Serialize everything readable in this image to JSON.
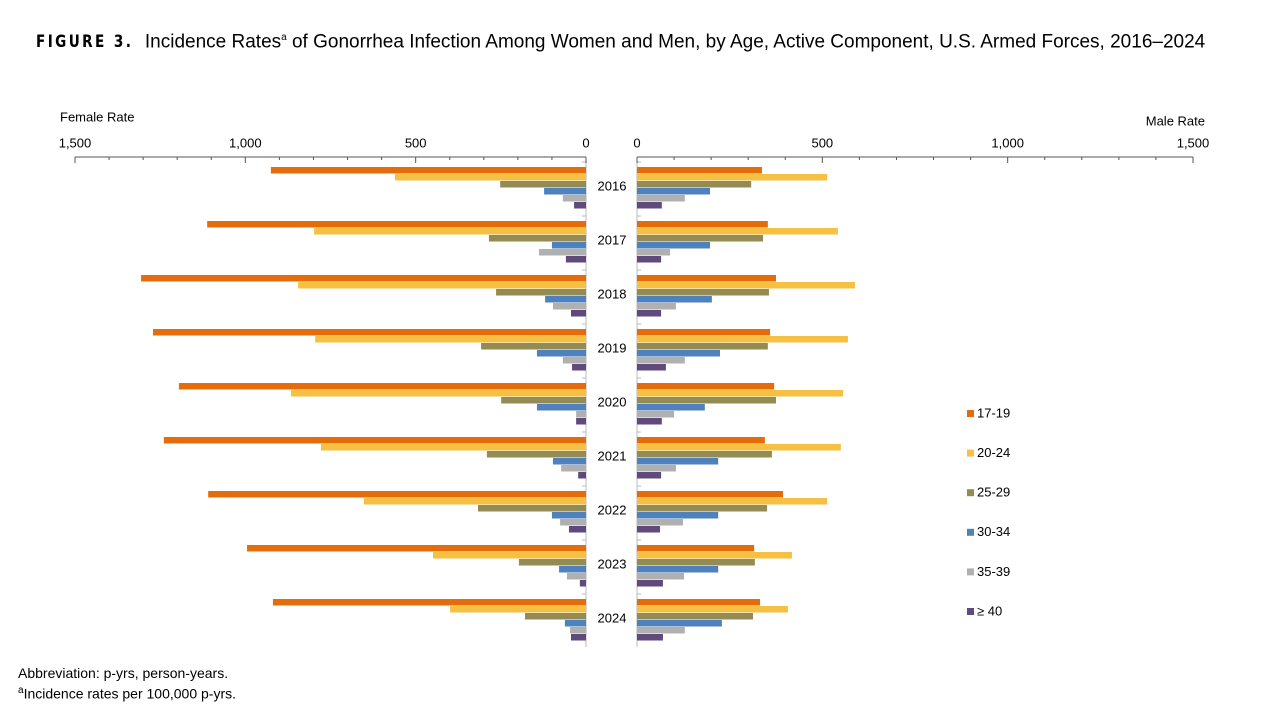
{
  "chart_data": [
    {
      "type": "hbar",
      "title": {
        "label": "FIGURE 3.",
        "text": "Incidence Rates",
        "marker": "a",
        "text_rest": "of Gonorrhea Infection Among Women and Men, by Age, Active Component, U.S. Armed Forces, 2016–2024"
      },
      "x_label": "Female Rate",
      "categories": [
        "2016",
        "2017",
        "2018",
        "2019",
        "2020",
        "2021",
        "2022",
        "2023",
        "2024"
      ],
      "xlim": [
        1500,
        0
      ],
      "xticks": [
        {
          "value": 1500,
          "label": "1,500"
        },
        {
          "value": 1000,
          "label": "1,000"
        },
        500,
        0
      ],
      "minor_xticks": [
        1400,
        1300,
        1200,
        1100,
        900,
        800,
        700,
        600,
        400,
        300,
        200,
        100
      ],
      "legend": "right",
      "series": [
        {
          "name": "17-19",
          "color": "#e46c0a",
          "values": [
            925,
            1112,
            1306,
            1271,
            1195,
            1239,
            1109,
            995,
            919
          ]
        },
        {
          "name": "20-24",
          "color": "#f6c142",
          "values": [
            561,
            798,
            845,
            795,
            866,
            778,
            652,
            449,
            399
          ]
        },
        {
          "name": "25-29",
          "color": "#948a54",
          "values": [
            252,
            285,
            264,
            308,
            249,
            291,
            317,
            197,
            179
          ]
        },
        {
          "name": "30-34",
          "color": "#4f81bd",
          "values": [
            123,
            100,
            120,
            144,
            144,
            97,
            100,
            79,
            62
          ]
        },
        {
          "name": "35-39",
          "color": "#b0b0b0",
          "values": [
            68,
            138,
            97,
            68,
            29,
            73,
            76,
            56,
            47
          ]
        },
        {
          "name": "≥ 40",
          "color": "#604a7b",
          "values": [
            35,
            59,
            44,
            41,
            29,
            23,
            50,
            18,
            44
          ]
        }
      ],
      "notes": [
        "Abbreviation: p-yrs, person-years.",
        {
          "marker": "a",
          "text": "Incidence rates per 100,000 p-yrs."
        }
      ]
    },
    {
      "type": "hbar",
      "x_label": "Male Rate",
      "xlim": [
        0,
        1500
      ],
      "xticks": [
        0,
        500,
        {
          "value": 1000,
          "label": "1,000"
        },
        {
          "value": 1500,
          "label": "1,500"
        }
      ],
      "minor_xticks": [
        100,
        200,
        300,
        400,
        600,
        700,
        800,
        900,
        1100,
        1200,
        1300,
        1400
      ],
      "series": [
        {
          "name": "17-19",
          "color": "#e46c0a",
          "values": [
            337,
            353,
            375,
            359,
            370,
            345,
            394,
            316,
            332
          ]
        },
        {
          "name": "20-24",
          "color": "#f6c142",
          "values": [
            513,
            542,
            588,
            569,
            556,
            550,
            513,
            418,
            407
          ]
        },
        {
          "name": "25-29",
          "color": "#948a54",
          "values": [
            308,
            340,
            356,
            353,
            375,
            364,
            351,
            318,
            313
          ]
        },
        {
          "name": "30-34",
          "color": "#4f81bd",
          "values": [
            197,
            197,
            202,
            224,
            183,
            219,
            219,
            219,
            229
          ]
        },
        {
          "name": "35-39",
          "color": "#b0b0b0",
          "values": [
            129,
            89,
            105,
            129,
            100,
            105,
            124,
            127,
            129
          ]
        },
        {
          "name": "≥ 40",
          "color": "#604a7b",
          "values": [
            67,
            65,
            65,
            78,
            67,
            65,
            62,
            70,
            70
          ]
        }
      ]
    }
  ]
}
